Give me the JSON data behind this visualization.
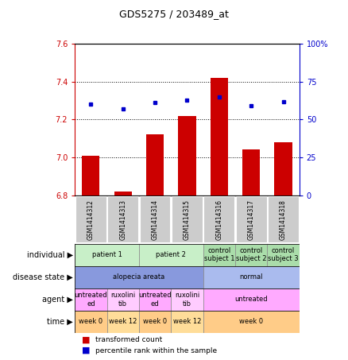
{
  "title": "GDS5275 / 203489_at",
  "samples": [
    "GSM1414312",
    "GSM1414313",
    "GSM1414314",
    "GSM1414315",
    "GSM1414316",
    "GSM1414317",
    "GSM1414318"
  ],
  "bar_values": [
    7.01,
    6.82,
    7.12,
    7.22,
    7.42,
    7.04,
    7.08
  ],
  "dot_values": [
    60,
    57,
    61,
    63,
    65,
    59,
    62
  ],
  "ylim_left": [
    6.8,
    7.6
  ],
  "ylim_right": [
    0,
    100
  ],
  "yticks_left": [
    6.8,
    7.0,
    7.2,
    7.4,
    7.6
  ],
  "yticks_right": [
    0,
    25,
    50,
    75,
    100
  ],
  "ytick_right_labels": [
    "0",
    "25",
    "50",
    "75",
    "100%"
  ],
  "bar_color": "#cc0000",
  "dot_color": "#0000cc",
  "bar_width": 0.55,
  "individual_rows": [
    {
      "spans": [
        0,
        2
      ],
      "label": "patient 1",
      "color": "#c8efc8"
    },
    {
      "spans": [
        2,
        4
      ],
      "label": "patient 2",
      "color": "#c8efc8"
    },
    {
      "spans": [
        4,
        5
      ],
      "label": "control\nsubject 1",
      "color": "#aaddaa"
    },
    {
      "spans": [
        5,
        6
      ],
      "label": "control\nsubject 2",
      "color": "#aaddaa"
    },
    {
      "spans": [
        6,
        7
      ],
      "label": "control\nsubject 3",
      "color": "#aaddaa"
    }
  ],
  "disease_rows": [
    {
      "spans": [
        0,
        4
      ],
      "label": "alopecia areata",
      "color": "#8899dd"
    },
    {
      "spans": [
        4,
        7
      ],
      "label": "normal",
      "color": "#aabbee"
    }
  ],
  "agent_rows": [
    {
      "spans": [
        0,
        1
      ],
      "label": "untreated\ned",
      "color": "#ffaaff"
    },
    {
      "spans": [
        1,
        2
      ],
      "label": "ruxolini\ntib",
      "color": "#ffccff"
    },
    {
      "spans": [
        2,
        3
      ],
      "label": "untreated\ned",
      "color": "#ffaaff"
    },
    {
      "spans": [
        3,
        4
      ],
      "label": "ruxolini\ntib",
      "color": "#ffccff"
    },
    {
      "spans": [
        4,
        7
      ],
      "label": "untreated",
      "color": "#ffaaff"
    }
  ],
  "time_rows": [
    {
      "spans": [
        0,
        1
      ],
      "label": "week 0",
      "color": "#ffcc88"
    },
    {
      "spans": [
        1,
        2
      ],
      "label": "week 12",
      "color": "#ffdd99"
    },
    {
      "spans": [
        2,
        3
      ],
      "label": "week 0",
      "color": "#ffcc88"
    },
    {
      "spans": [
        3,
        4
      ],
      "label": "week 12",
      "color": "#ffdd99"
    },
    {
      "spans": [
        4,
        7
      ],
      "label": "week 0",
      "color": "#ffcc88"
    }
  ],
  "row_labels": [
    "individual",
    "disease state",
    "agent",
    "time"
  ],
  "legend_items": [
    "transformed count",
    "percentile rank within the sample"
  ],
  "legend_colors": [
    "#cc0000",
    "#0000cc"
  ]
}
